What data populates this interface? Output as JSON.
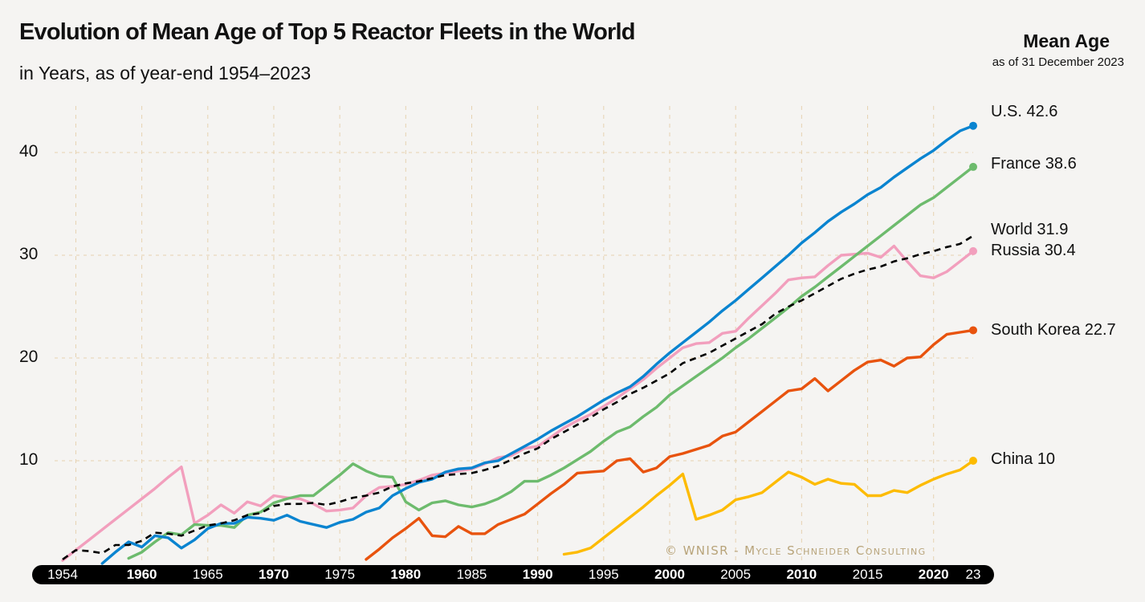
{
  "title": "Evolution of Mean Age of Top 5 Reactor Fleets in the World",
  "subtitle": "in Years, as of year-end 1954–2023",
  "mean_age_header": {
    "title": "Mean Age",
    "subtitle": "as of 31 December 2023"
  },
  "copyright": "© WNISR - Mycle Schneider Consulting",
  "chart_data": {
    "type": "line",
    "title": "Evolution of Mean Age of Top 5 Reactor Fleets in the World",
    "subtitle": "in Years, as of year-end 1954–2023",
    "xlim": [
      1954,
      2023
    ],
    "ylim": [
      0,
      45
    ],
    "grid": true,
    "y_ticks": [
      "10",
      "20",
      "30",
      "40"
    ],
    "x_ticks": [
      {
        "year": 1954,
        "label": "1954",
        "bold": false
      },
      {
        "year": 1960,
        "label": "1960",
        "bold": true
      },
      {
        "year": 1965,
        "label": "1965",
        "bold": false
      },
      {
        "year": 1970,
        "label": "1970",
        "bold": true
      },
      {
        "year": 1975,
        "label": "1975",
        "bold": false
      },
      {
        "year": 1980,
        "label": "1980",
        "bold": true
      },
      {
        "year": 1985,
        "label": "1985",
        "bold": false
      },
      {
        "year": 1990,
        "label": "1990",
        "bold": true
      },
      {
        "year": 1995,
        "label": "1995",
        "bold": false
      },
      {
        "year": 2000,
        "label": "2000",
        "bold": true
      },
      {
        "year": 2005,
        "label": "2005",
        "bold": false
      },
      {
        "year": 2010,
        "label": "2010",
        "bold": true
      },
      {
        "year": 2015,
        "label": "2015",
        "bold": false
      },
      {
        "year": 2020,
        "label": "2020",
        "bold": true
      },
      {
        "year": 2023,
        "label": "23",
        "bold": false
      }
    ],
    "series": [
      {
        "name": "U.S.",
        "end_label": "U.S. 42.6",
        "color": "#0a84d0",
        "dashed": false,
        "start_year": 1957,
        "values": [
          0,
          1.1,
          2.1,
          1.6,
          2.7,
          2.5,
          1.5,
          2.3,
          3.4,
          3.9,
          3.9,
          4.5,
          4.4,
          4.2,
          4.7,
          4.1,
          3.8,
          3.5,
          4.0,
          4.3,
          5.0,
          5.4,
          6.6,
          7.3,
          7.9,
          8.2,
          8.9,
          9.2,
          9.3,
          9.8,
          10.0,
          10.7,
          11.4,
          12.1,
          12.9,
          13.6,
          14.3,
          15.1,
          15.9,
          16.6,
          17.2,
          18.2,
          19.4,
          20.5,
          21.5,
          22.5,
          23.5,
          24.6,
          25.6,
          26.7,
          27.8,
          28.9,
          30.0,
          31.2,
          32.2,
          33.3,
          34.2,
          35.0,
          35.9,
          36.6,
          37.6,
          38.5,
          39.4,
          40.2,
          41.2,
          42.1,
          42.6
        ]
      },
      {
        "name": "France",
        "end_label": "France 38.6",
        "color": "#6dbb6d",
        "dashed": false,
        "start_year": 1959,
        "values": [
          0.5,
          1.1,
          2.1,
          3.0,
          2.8,
          3.8,
          3.7,
          3.7,
          3.5,
          4.7,
          5.0,
          5.9,
          6.3,
          6.6,
          6.6,
          7.6,
          8.6,
          9.7,
          9.0,
          8.5,
          8.4,
          6.0,
          5.2,
          5.9,
          6.1,
          5.7,
          5.5,
          5.8,
          6.3,
          7.0,
          8.0,
          8.0,
          8.6,
          9.3,
          10.1,
          10.9,
          11.9,
          12.8,
          13.3,
          14.3,
          15.2,
          16.4,
          17.3,
          18.2,
          19.1,
          20.0,
          21.0,
          21.9,
          22.9,
          23.9,
          24.9,
          26.0,
          26.9,
          27.9,
          28.9,
          29.9,
          30.9,
          31.9,
          32.9,
          33.9,
          34.9,
          35.6,
          36.6,
          37.6,
          38.6
        ]
      },
      {
        "name": "World",
        "end_label": "World 31.9",
        "color": "#000000",
        "dashed": true,
        "start_year": 1954,
        "values": [
          0.4,
          1.3,
          1.2,
          1.0,
          1.8,
          1.8,
          2.2,
          3.0,
          2.9,
          2.7,
          3.2,
          3.7,
          3.9,
          4.2,
          4.7,
          4.9,
          5.6,
          5.8,
          5.8,
          5.9,
          5.7,
          6.0,
          6.4,
          6.6,
          6.9,
          7.5,
          7.8,
          8.0,
          8.3,
          8.6,
          8.7,
          8.8,
          9.1,
          9.5,
          10.1,
          10.7,
          11.2,
          12.1,
          12.8,
          13.5,
          14.2,
          15.0,
          15.7,
          16.5,
          17.1,
          17.8,
          18.5,
          19.5,
          20.0,
          20.5,
          21.2,
          21.9,
          22.6,
          23.3,
          24.3,
          25.0,
          25.6,
          26.3,
          27.0,
          27.7,
          28.2,
          28.6,
          28.9,
          29.4,
          29.7,
          30.1,
          30.4,
          30.8,
          31.1,
          31.9
        ]
      },
      {
        "name": "Russia",
        "end_label": "Russia 30.4",
        "color": "#f29fbd",
        "dashed": false,
        "start_year": 1954,
        "values": [
          0.3,
          1.3,
          2.3,
          3.3,
          4.3,
          5.3,
          6.3,
          7.3,
          8.4,
          9.4,
          3.9,
          4.7,
          5.7,
          4.9,
          6.0,
          5.6,
          6.6,
          6.4,
          6.3,
          5.8,
          5.1,
          5.2,
          5.4,
          6.6,
          7.4,
          7.5,
          7.7,
          8.1,
          8.6,
          8.8,
          9.0,
          9.2,
          9.7,
          10.3,
          10.5,
          11.2,
          11.4,
          12.3,
          13.2,
          13.9,
          14.5,
          15.3,
          16.1,
          17.0,
          17.9,
          19.0,
          20.0,
          21.0,
          21.4,
          21.5,
          22.4,
          22.6,
          23.9,
          25.1,
          26.3,
          27.6,
          27.8,
          27.9,
          29.0,
          30.0,
          30.1,
          30.2,
          29.8,
          30.9,
          29.4,
          28.0,
          27.8,
          28.4,
          29.4,
          30.4
        ]
      },
      {
        "name": "South Korea",
        "end_label": "South Korea 22.7",
        "color": "#e8530e",
        "dashed": false,
        "start_year": 1977,
        "values": [
          0.4,
          1.4,
          2.5,
          3.4,
          4.4,
          2.7,
          2.6,
          3.6,
          2.9,
          2.9,
          3.8,
          4.3,
          4.8,
          5.8,
          6.8,
          7.7,
          8.8,
          8.9,
          9.0,
          10.0,
          10.2,
          8.9,
          9.3,
          10.4,
          10.7,
          11.1,
          11.5,
          12.4,
          12.8,
          13.8,
          14.8,
          15.8,
          16.8,
          17.0,
          18.0,
          16.8,
          17.8,
          18.8,
          19.6,
          19.8,
          19.2,
          20.0,
          20.1,
          21.3,
          22.3,
          22.5,
          22.7
        ]
      },
      {
        "name": "China",
        "end_label": "China 10",
        "color": "#fdbb00",
        "dashed": false,
        "start_year": 1992,
        "values": [
          0.9,
          1.1,
          1.5,
          2.5,
          3.5,
          4.5,
          5.5,
          6.6,
          7.6,
          8.7,
          4.3,
          4.7,
          5.2,
          6.2,
          6.5,
          6.9,
          7.9,
          8.9,
          8.4,
          7.7,
          8.2,
          7.8,
          7.7,
          6.6,
          6.6,
          7.1,
          6.9,
          7.6,
          8.2,
          8.7,
          9.1,
          10.0
        ]
      }
    ]
  }
}
